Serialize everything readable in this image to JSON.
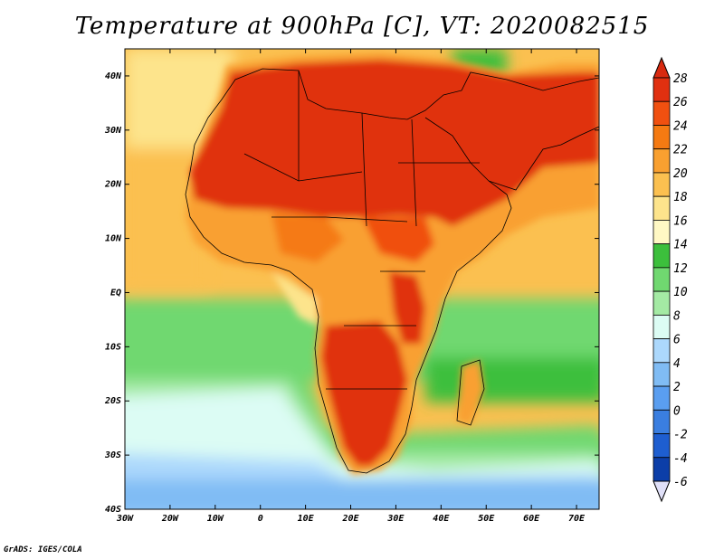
{
  "title": "Temperature at 900hPa [C], VT: 2020082515",
  "credit": "GrADS: IGES/COLA",
  "map": {
    "lon_range": [
      -30,
      75
    ],
    "lat_range": [
      -40,
      45
    ],
    "lon_ticks": [
      {
        "lon": -30,
        "label": "30W"
      },
      {
        "lon": -20,
        "label": "20W"
      },
      {
        "lon": -10,
        "label": "10W"
      },
      {
        "lon": 0,
        "label": "0"
      },
      {
        "lon": 10,
        "label": "10E"
      },
      {
        "lon": 20,
        "label": "20E"
      },
      {
        "lon": 30,
        "label": "30E"
      },
      {
        "lon": 40,
        "label": "40E"
      },
      {
        "lon": 50,
        "label": "50E"
      },
      {
        "lon": 60,
        "label": "60E"
      },
      {
        "lon": 70,
        "label": "70E"
      }
    ],
    "lat_ticks": [
      {
        "lat": 40,
        "label": "40N"
      },
      {
        "lat": 30,
        "label": "30N"
      },
      {
        "lat": 20,
        "label": "20N"
      },
      {
        "lat": 10,
        "label": "10N"
      },
      {
        "lat": 0,
        "label": "EQ"
      },
      {
        "lat": -10,
        "label": "10S"
      },
      {
        "lat": -20,
        "label": "20S"
      },
      {
        "lat": -30,
        "label": "30S"
      },
      {
        "lat": -40,
        "label": "40S"
      }
    ]
  },
  "colorbar": {
    "levels": [
      "28",
      "26",
      "24",
      "22",
      "20",
      "18",
      "16",
      "14",
      "12",
      "10",
      "8",
      "6",
      "4",
      "2",
      "0",
      "-2",
      "-4",
      "-6"
    ],
    "colors": [
      "#e03010",
      "#f05010",
      "#f57a12",
      "#f9a030",
      "#fbc050",
      "#fde48c",
      "#fff8c4",
      "#3cbf3c",
      "#70d870",
      "#a4eaa4",
      "#dcfcf4",
      "#acd8fc",
      "#80bcf4",
      "#5a9ef0",
      "#3a7ee0",
      "#1e5ed0",
      "#0c3ea8",
      "#062078"
    ],
    "overflow_top_color": "#d82a10",
    "underflow_bottom_color": "#e0e0f8"
  }
}
